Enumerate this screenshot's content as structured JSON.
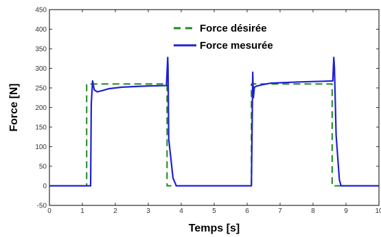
{
  "chart_data": {
    "type": "line",
    "xlabel": "Temps [s]",
    "ylabel": "Force [N]",
    "xlim": [
      0,
      10
    ],
    "ylim": [
      -50,
      450
    ],
    "xticks": [
      0,
      1,
      2,
      3,
      4,
      5,
      6,
      7,
      8,
      9,
      10
    ],
    "yticks": [
      -50,
      0,
      50,
      100,
      150,
      200,
      250,
      300,
      350,
      400,
      450
    ],
    "grid": false,
    "legend_position": "top-right",
    "series": [
      {
        "name": "Force désirée",
        "color": "#1a8a1a",
        "style": "dashed",
        "x": [
          0,
          1.13,
          1.13,
          3.57,
          3.57,
          6.13,
          6.13,
          8.58,
          8.58,
          10
        ],
        "y": [
          0,
          0,
          260,
          260,
          0,
          0,
          260,
          260,
          0,
          0
        ]
      },
      {
        "name": "Force mesurée",
        "color": "#1f1fd6",
        "style": "solid",
        "x": [
          0,
          1.25,
          1.27,
          1.31,
          1.36,
          1.45,
          1.6,
          1.8,
          2.2,
          3.0,
          3.55,
          3.59,
          3.6,
          3.62,
          3.75,
          3.85,
          4.5,
          6.13,
          6.17,
          6.19,
          6.22,
          6.3,
          6.45,
          6.7,
          7.5,
          8.3,
          8.6,
          8.63,
          8.65,
          8.7,
          8.8,
          8.85,
          10
        ],
        "y": [
          0,
          0,
          210,
          268,
          245,
          240,
          243,
          248,
          252,
          255,
          256,
          328,
          300,
          120,
          20,
          0,
          0,
          0,
          290,
          225,
          252,
          255,
          258,
          262,
          265,
          267,
          268,
          328,
          300,
          130,
          15,
          0,
          0
        ]
      }
    ]
  }
}
